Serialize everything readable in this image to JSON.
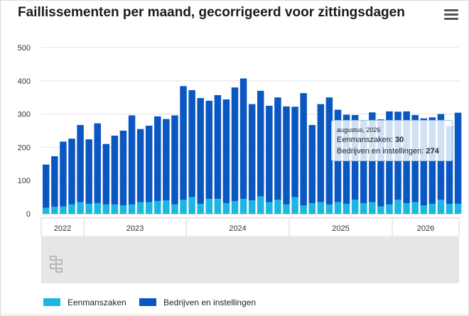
{
  "chart_data": {
    "type": "bar",
    "stacked": true,
    "title": "Faillissementen per maand, gecorrigeerd voor zittingsdagen",
    "ylim": [
      0,
      500
    ],
    "y_ticks": [
      0,
      100,
      200,
      300,
      400,
      500
    ],
    "x_year_labels": [
      "2022",
      "2023",
      "2024",
      "2025",
      "2026"
    ],
    "grid": true,
    "legend_position": "bottom",
    "series": [
      {
        "name": "Eenmanszaken",
        "color": "#1bb7e0",
        "values": [
          18,
          21,
          22,
          28,
          35,
          30,
          32,
          28,
          28,
          25,
          28,
          35,
          35,
          38,
          40,
          28,
          42,
          50,
          30,
          45,
          45,
          32,
          38,
          45,
          40,
          52,
          35,
          42,
          28,
          50,
          25,
          32,
          35,
          28,
          35,
          30,
          42,
          32,
          35,
          22,
          28,
          42,
          32,
          35,
          25,
          30,
          42,
          30,
          30
        ]
      },
      {
        "name": "Bedrijven en instellingen",
        "color": "#0a57c2",
        "values": [
          130,
          152,
          195,
          198,
          232,
          194,
          240,
          182,
          207,
          225,
          268,
          220,
          230,
          255,
          245,
          268,
          342,
          322,
          318,
          295,
          312,
          312,
          342,
          362,
          290,
          318,
          290,
          308,
          295,
          272,
          338,
          235,
          295,
          322,
          278,
          268,
          255,
          250,
          270,
          262,
          280,
          265,
          276,
          262,
          262,
          260,
          258,
          234,
          274
        ]
      }
    ]
  },
  "tooltip": {
    "date": "augustus, 2026",
    "line1_label": "Eenmanszaken: ",
    "line1_value": "30",
    "line2_label": "Bedrijven en instellingen: ",
    "line2_value": "274"
  },
  "menu_icon": "hamburger-menu-icon",
  "logo_icon": "cbs-logo-icon"
}
